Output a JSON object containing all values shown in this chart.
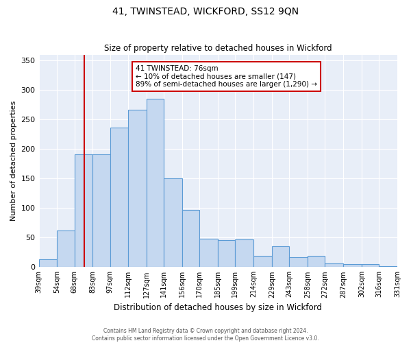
{
  "title": "41, TWINSTEAD, WICKFORD, SS12 9QN",
  "subtitle": "Size of property relative to detached houses in Wickford",
  "xlabel": "Distribution of detached houses by size in Wickford",
  "ylabel": "Number of detached properties",
  "bins": [
    39,
    54,
    68,
    83,
    97,
    112,
    127,
    141,
    156,
    170,
    185,
    199,
    214,
    229,
    243,
    258,
    272,
    287,
    302,
    316,
    331
  ],
  "counts": [
    13,
    62,
    191,
    191,
    236,
    267,
    285,
    150,
    97,
    48,
    46,
    47,
    19,
    35,
    17,
    19,
    6,
    5,
    5,
    2
  ],
  "bar_color": "#c5d8f0",
  "bar_edge_color": "#5b9bd5",
  "vline_x": 76,
  "vline_color": "#cc0000",
  "annotation_title": "41 TWINSTEAD: 76sqm",
  "annotation_line1": "← 10% of detached houses are smaller (147)",
  "annotation_line2": "89% of semi-detached houses are larger (1,290) →",
  "annotation_box_color": "#cc0000",
  "ylim": [
    0,
    360
  ],
  "footer_line1": "Contains HM Land Registry data © Crown copyright and database right 2024.",
  "footer_line2": "Contains public sector information licensed under the Open Government Licence v3.0.",
  "tick_labels": [
    "39sqm",
    "54sqm",
    "68sqm",
    "83sqm",
    "97sqm",
    "112sqm",
    "127sqm",
    "141sqm",
    "156sqm",
    "170sqm",
    "185sqm",
    "199sqm",
    "214sqm",
    "229sqm",
    "243sqm",
    "258sqm",
    "272sqm",
    "287sqm",
    "302sqm",
    "316sqm",
    "331sqm"
  ],
  "background_color": "#e8eef8",
  "grid_color": "#ffffff",
  "yticks": [
    0,
    50,
    100,
    150,
    200,
    250,
    300,
    350
  ]
}
